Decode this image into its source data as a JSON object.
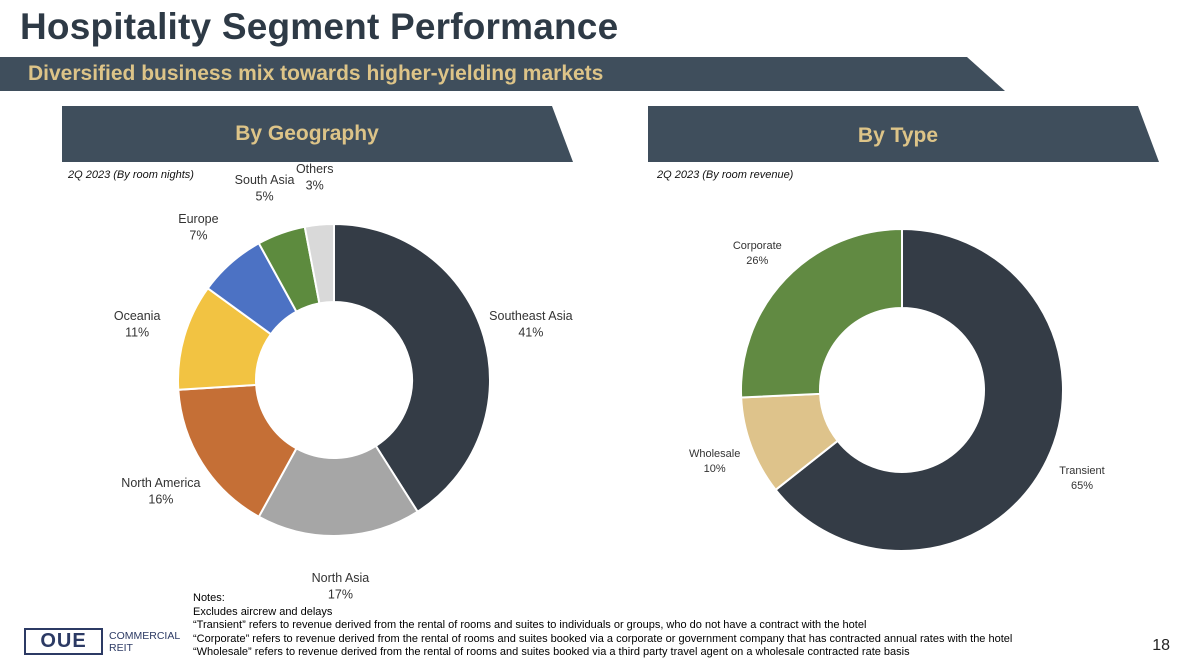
{
  "title": "Hospitality Segment Performance",
  "subtitle": "Diversified business mix towards higher-yielding markets",
  "panels": {
    "geography": {
      "header": "By Geography",
      "caption": "2Q 2023 (By room nights)"
    },
    "type": {
      "header": "By Type",
      "caption": "2Q 2023 (By room revenue)"
    }
  },
  "chart_data": [
    {
      "type": "pie",
      "title": "By Geography",
      "subtitle": "2Q 2023 (By room nights)",
      "donut": true,
      "slices": [
        {
          "label": "Southeast Asia",
          "value": 41,
          "display": "41%",
          "color": "#343c46"
        },
        {
          "label": "North Asia",
          "value": 17,
          "display": "17%",
          "color": "#a6a6a6"
        },
        {
          "label": "North America",
          "value": 16,
          "display": "16%",
          "color": "#c56f36"
        },
        {
          "label": "Oceania",
          "value": 11,
          "display": "11%",
          "color": "#f2c342"
        },
        {
          "label": "Europe",
          "value": 7,
          "display": "7%",
          "color": "#4c72c4"
        },
        {
          "label": "South Asia",
          "value": 5,
          "display": "5%",
          "color": "#5d8b3e"
        },
        {
          "label": "Others",
          "value": 3,
          "display": "3%",
          "color": "#d9d9d9"
        }
      ]
    },
    {
      "type": "pie",
      "title": "By Type",
      "subtitle": "2Q 2023 (By room revenue)",
      "donut": true,
      "slices": [
        {
          "label": "Transient",
          "value": 65,
          "display": "65%",
          "color": "#343c46"
        },
        {
          "label": "Wholesale",
          "value": 10,
          "display": "10%",
          "color": "#dec38b"
        },
        {
          "label": "Corporate",
          "value": 26,
          "display": "26%",
          "color": "#618a42"
        }
      ]
    }
  ],
  "notes": {
    "heading": "Notes:",
    "lines": [
      "Excludes aircrew and delays",
      "“Transient” refers to revenue derived from the rental of rooms and suites to individuals or groups, who do not have a contract with the hotel",
      "“Corporate” refers to revenue derived from the rental of rooms and suites booked via a corporate or government company that has contracted annual rates with the hotel",
      "“Wholesale” refers to revenue derived from the rental of rooms and suites booked via a third party travel agent on a wholesale contracted rate basis"
    ]
  },
  "logo": {
    "mark": "OUE",
    "line1": "COMMERCIAL",
    "line2": "REIT"
  },
  "page_number": "18"
}
